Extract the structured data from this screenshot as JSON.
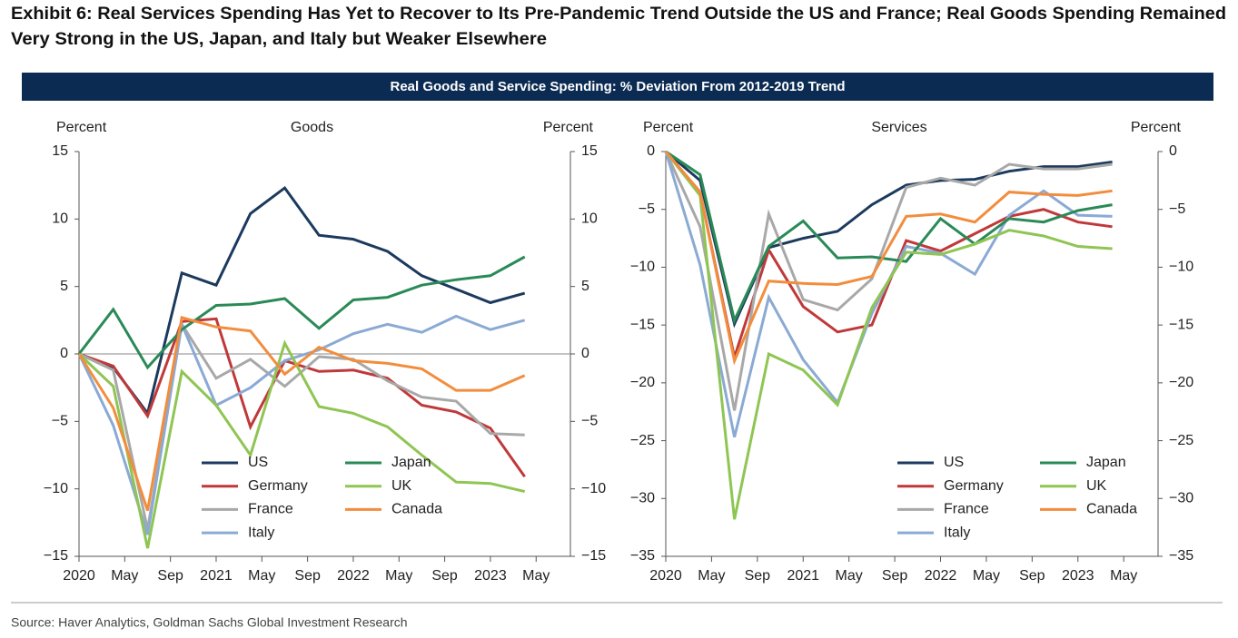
{
  "title": [
    "Exhibit 6: Real Services Spending Has Yet to Recover to Its Pre-Pandemic Trend Outside the US and France; Real Goods Spending Remained",
    "Very Strong in the US, Japan, and Italy but Weaker Elsewhere"
  ],
  "banner": "Real Goods and Service Spending: % Deviation From 2012-2019 Trend",
  "source": "Source: Haver Analytics, Goldman Sachs Global Investment Research",
  "chart_data": [
    {
      "type": "line",
      "title": "Goods",
      "y_label": "Percent",
      "y2_label": "Percent",
      "x": [
        "2020-01",
        "2020-04",
        "2020-07",
        "2020-10",
        "2021-01",
        "2021-04",
        "2021-07",
        "2021-10",
        "2022-01",
        "2022-04",
        "2022-07",
        "2022-10",
        "2023-01",
        "2023-04"
      ],
      "xlim": [
        "2020-01",
        "2023-08"
      ],
      "xticks": [
        {
          "value": "2020-01",
          "label": "2020"
        },
        {
          "value": "2020-05",
          "label": "May"
        },
        {
          "value": "2020-09",
          "label": "Sep"
        },
        {
          "value": "2021-01",
          "label": "2021"
        },
        {
          "value": "2021-05",
          "label": "May"
        },
        {
          "value": "2021-09",
          "label": "Sep"
        },
        {
          "value": "2022-01",
          "label": "2022"
        },
        {
          "value": "2022-05",
          "label": "May"
        },
        {
          "value": "2022-09",
          "label": "Sep"
        },
        {
          "value": "2023-01",
          "label": "2023"
        },
        {
          "value": "2023-05",
          "label": "May"
        }
      ],
      "ylim": [
        -15,
        15
      ],
      "yticks": [
        {
          "value": -15,
          "label": "−15"
        },
        {
          "value": -10,
          "label": "−10"
        },
        {
          "value": -5,
          "label": "−5"
        },
        0,
        5,
        10,
        15
      ],
      "y2lim": [
        -15,
        15
      ],
      "y2ticks": [
        {
          "value": -15,
          "label": "−15"
        },
        {
          "value": -10,
          "label": "−10"
        },
        {
          "value": -5,
          "label": "−5"
        },
        0,
        5,
        10,
        15
      ],
      "reference_line": 0,
      "series": [
        {
          "name": "US",
          "color": "#1b3a5e",
          "values": [
            0,
            -1.0,
            -4.4,
            6.0,
            5.1,
            10.4,
            12.3,
            8.8,
            8.5,
            7.6,
            5.8,
            4.8,
            3.8,
            4.5
          ]
        },
        {
          "name": "Germany",
          "color": "#c0393a",
          "values": [
            0,
            -0.9,
            -4.6,
            2.4,
            2.6,
            -5.4,
            -0.5,
            -1.3,
            -1.2,
            -1.8,
            -3.8,
            -4.3,
            -5.5,
            -9.1
          ]
        },
        {
          "name": "France",
          "color": "#a8a8a8",
          "values": [
            0,
            -1.2,
            -13.0,
            2.2,
            -1.8,
            -0.4,
            -2.4,
            -0.2,
            -0.4,
            -2.0,
            -3.2,
            -3.5,
            -5.9,
            -6.0
          ]
        },
        {
          "name": "Italy",
          "color": "#8aaad4",
          "values": [
            0,
            -5.3,
            -13.4,
            2.2,
            -3.8,
            -2.5,
            -0.5,
            0.3,
            1.5,
            2.2,
            1.6,
            2.8,
            1.8,
            2.5
          ]
        },
        {
          "name": "Japan",
          "color": "#2a8a57",
          "values": [
            0,
            3.3,
            -1.0,
            1.8,
            3.6,
            3.7,
            4.1,
            1.9,
            4.0,
            4.2,
            5.1,
            5.5,
            5.8,
            7.2
          ]
        },
        {
          "name": "UK",
          "color": "#8fc553",
          "values": [
            0,
            -2.4,
            -14.4,
            -1.3,
            -3.8,
            -7.5,
            0.8,
            -3.9,
            -4.4,
            -5.4,
            -7.5,
            -9.5,
            -9.6,
            -10.2
          ]
        },
        {
          "name": "Canada",
          "color": "#f28d3d",
          "values": [
            0,
            -4.0,
            -11.6,
            2.7,
            2.0,
            1.7,
            -1.5,
            0.5,
            -0.5,
            -0.7,
            -1.1,
            -2.7,
            -2.7,
            -1.6
          ]
        }
      ]
    },
    {
      "type": "line",
      "title": "Services",
      "y_label": "Percent",
      "y2_label": "Percent",
      "x": [
        "2020-01",
        "2020-04",
        "2020-07",
        "2020-10",
        "2021-01",
        "2021-04",
        "2021-07",
        "2021-10",
        "2022-01",
        "2022-04",
        "2022-07",
        "2022-10",
        "2023-01",
        "2023-04"
      ],
      "xlim": [
        "2020-01",
        "2023-08"
      ],
      "xticks": [
        {
          "value": "2020-01",
          "label": "2020"
        },
        {
          "value": "2020-05",
          "label": "May"
        },
        {
          "value": "2020-09",
          "label": "Sep"
        },
        {
          "value": "2021-01",
          "label": "2021"
        },
        {
          "value": "2021-05",
          "label": "May"
        },
        {
          "value": "2021-09",
          "label": "Sep"
        },
        {
          "value": "2022-01",
          "label": "2022"
        },
        {
          "value": "2022-05",
          "label": "May"
        },
        {
          "value": "2022-09",
          "label": "Sep"
        },
        {
          "value": "2023-01",
          "label": "2023"
        },
        {
          "value": "2023-05",
          "label": "May"
        }
      ],
      "ylim": [
        -35,
        0
      ],
      "yticks": [
        {
          "value": -35,
          "label": "−35"
        },
        {
          "value": -30,
          "label": "−30"
        },
        {
          "value": -25,
          "label": "−25"
        },
        {
          "value": -20,
          "label": "−20"
        },
        {
          "value": -15,
          "label": "−15"
        },
        {
          "value": -10,
          "label": "−10"
        },
        {
          "value": -5,
          "label": "−5"
        },
        0
      ],
      "y2lim": [
        -35,
        0
      ],
      "y2ticks": [
        {
          "value": -35,
          "label": "−35"
        },
        {
          "value": -30,
          "label": "−30"
        },
        {
          "value": -25,
          "label": "−25"
        },
        {
          "value": -20,
          "label": "−20"
        },
        {
          "value": -15,
          "label": "−15"
        },
        {
          "value": -10,
          "label": "−10"
        },
        {
          "value": -5,
          "label": "−5"
        },
        0
      ],
      "series": [
        {
          "name": "US",
          "color": "#1b3a5e",
          "values": [
            0,
            -2.5,
            -14.9,
            -8.3,
            -7.5,
            -6.9,
            -4.6,
            -2.9,
            -2.5,
            -2.4,
            -1.7,
            -1.3,
            -1.3,
            -0.9
          ]
        },
        {
          "name": "Germany",
          "color": "#c0393a",
          "values": [
            0,
            -3.5,
            -17.8,
            -8.5,
            -13.4,
            -15.6,
            -15.0,
            -7.7,
            -8.6,
            -7.1,
            -5.6,
            -5.0,
            -6.1,
            -6.5
          ]
        },
        {
          "name": "France",
          "color": "#a8a8a8",
          "values": [
            0,
            -6.5,
            -22.4,
            -5.4,
            -12.8,
            -13.7,
            -11.0,
            -3.1,
            -2.3,
            -2.9,
            -1.1,
            -1.5,
            -1.5,
            -1.1
          ]
        },
        {
          "name": "Italy",
          "color": "#8aaad4",
          "values": [
            0,
            -9.8,
            -24.7,
            -12.6,
            -18.0,
            -21.7,
            -14.0,
            -8.2,
            -8.8,
            -10.6,
            -5.5,
            -3.4,
            -5.5,
            -5.6
          ]
        },
        {
          "name": "Japan",
          "color": "#2a8a57",
          "values": [
            0,
            -2.0,
            -14.6,
            -8.2,
            -6.0,
            -9.2,
            -9.1,
            -9.5,
            -5.8,
            -8.0,
            -5.8,
            -6.1,
            -5.1,
            -4.6
          ]
        },
        {
          "name": "UK",
          "color": "#8fc553",
          "values": [
            0,
            -3.8,
            -31.8,
            -17.5,
            -18.9,
            -21.9,
            -13.5,
            -8.7,
            -8.9,
            -8.0,
            -6.8,
            -7.3,
            -8.2,
            -8.4
          ]
        },
        {
          "name": "Canada",
          "color": "#f28d3d",
          "values": [
            0,
            -3.5,
            -18.1,
            -11.2,
            -11.4,
            -11.5,
            -10.8,
            -5.6,
            -5.4,
            -6.1,
            -3.5,
            -3.7,
            -3.8,
            -3.4
          ]
        }
      ]
    }
  ]
}
